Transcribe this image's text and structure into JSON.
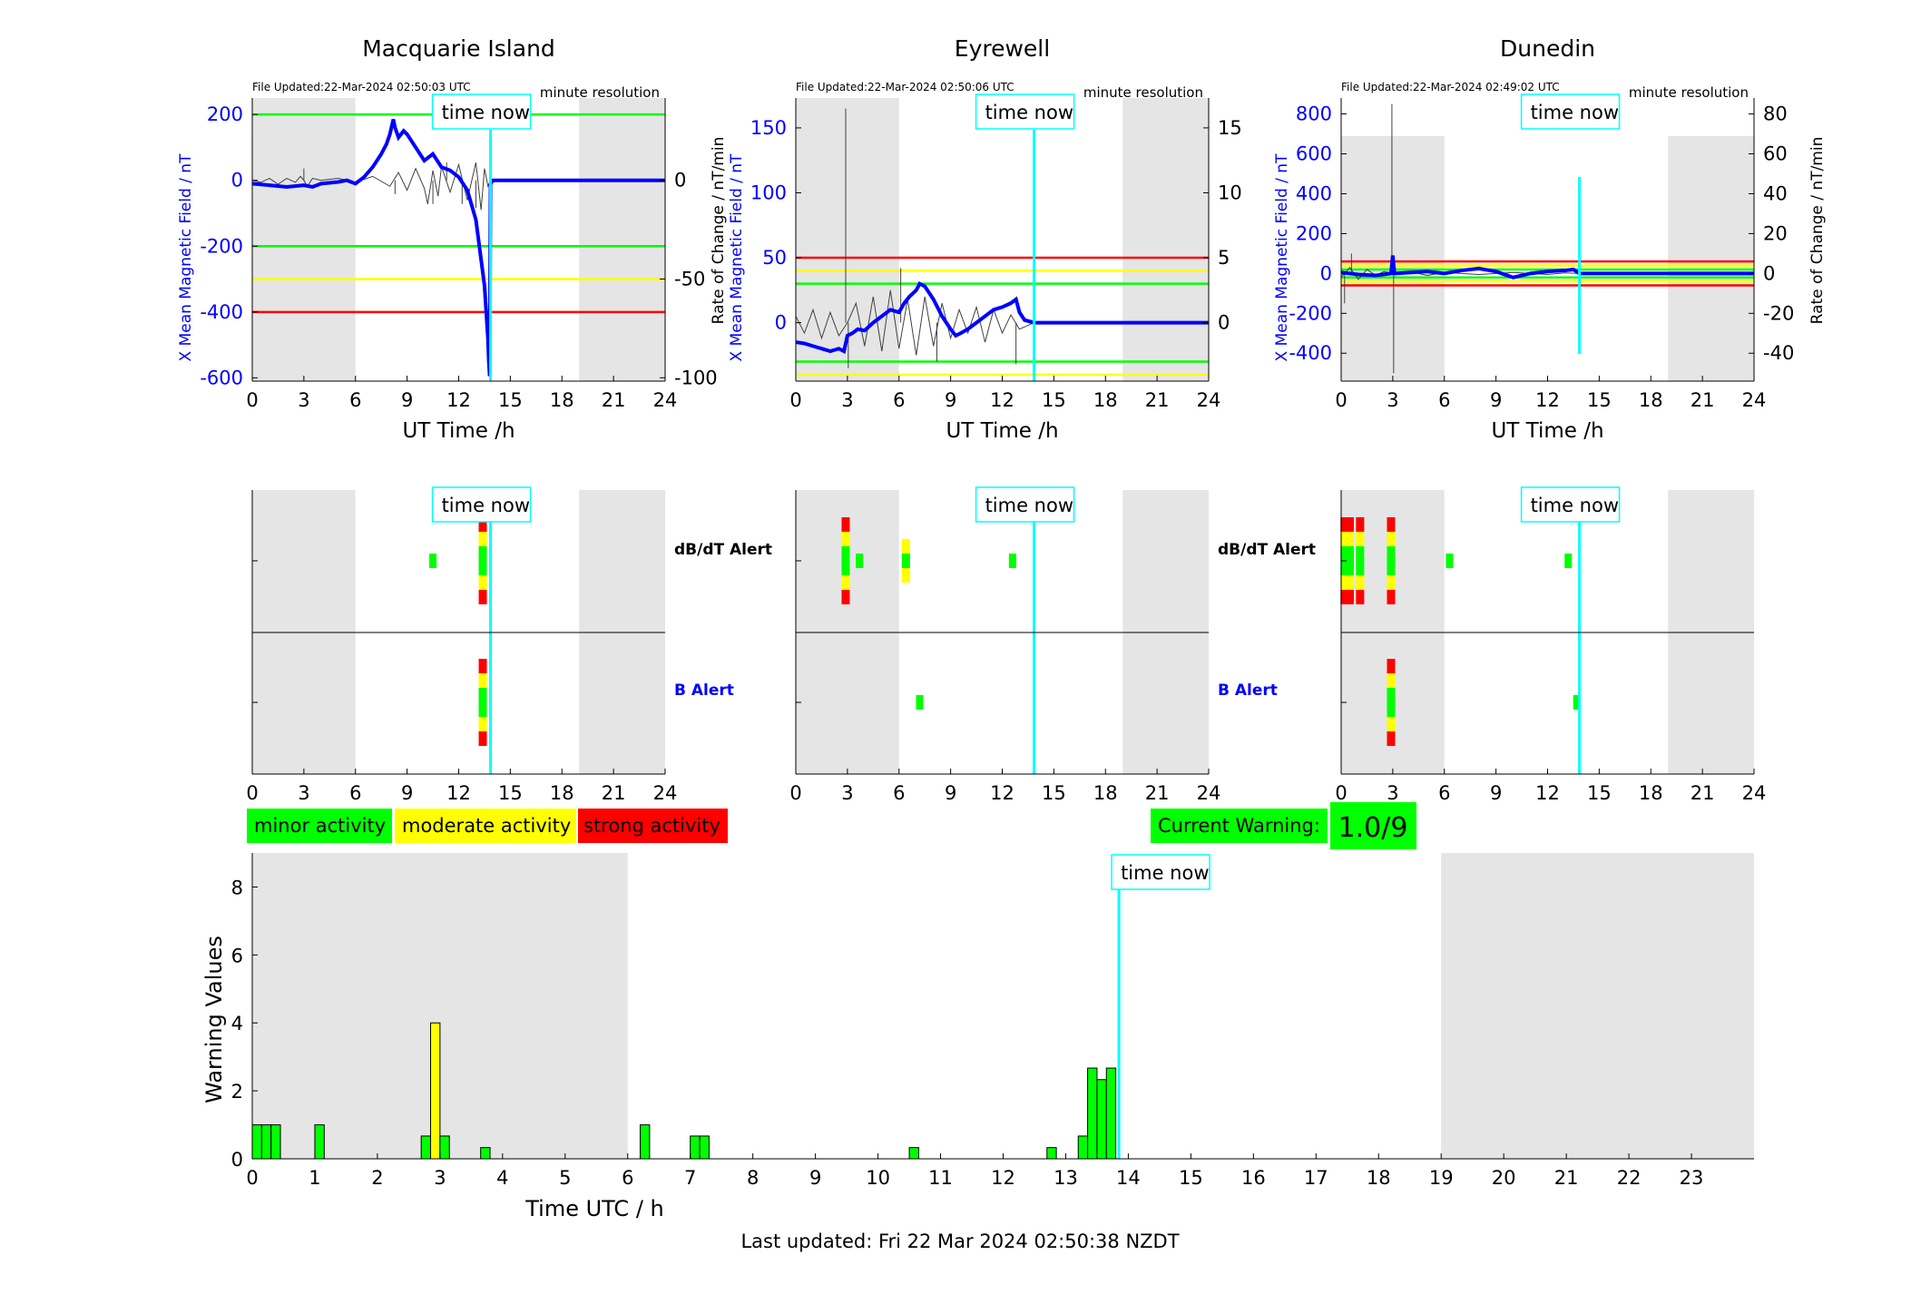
{
  "footer": "Last updated: Fri 22 Mar 2024 02:50:38 NZDT",
  "legend": {
    "minor": "minor activity",
    "moderate": "moderate activity",
    "strong": "strong activity"
  },
  "current_warning": {
    "label": "Current Warning:",
    "value": "1.0/9"
  },
  "time_now_label": "time now",
  "colors": {
    "field": "#0000ff",
    "derivative": "#404040",
    "green": "#00ff00",
    "yellow": "#ffff00",
    "red": "#ff0000",
    "cyan": "#00ffff",
    "night": "#e5e5e5"
  },
  "stations": [
    {
      "name": "Macquarie Island",
      "file_updated": "File Updated:22-Mar-2024 02:50:03 UTC",
      "resolution": "minute resolution",
      "ylabel": "X Mean Magnetic Field / nT",
      "y2label": "",
      "xlabel": "UT Time /h",
      "ylim": [
        -610,
        250
      ],
      "yticks": [
        -600,
        -400,
        -200,
        0,
        200
      ],
      "y2lim": [
        -101.7,
        41.7
      ],
      "y2ticks": [
        -100,
        -50,
        0
      ],
      "xlim": [
        0,
        24
      ],
      "xticks": [
        0,
        3,
        6,
        9,
        12,
        15,
        18,
        21,
        24
      ],
      "night": [
        [
          0,
          6
        ],
        [
          19,
          24
        ]
      ],
      "time_now": 13.85,
      "levels": [
        {
          "value": 200,
          "color": "green"
        },
        {
          "value": -200,
          "color": "green"
        },
        {
          "value": -300,
          "color": "yellow"
        },
        {
          "value": -400,
          "color": "red"
        }
      ],
      "field_series": {
        "x": [
          0,
          1,
          2,
          3,
          3.5,
          4,
          5,
          5.5,
          6,
          6.5,
          7,
          7.5,
          7.8,
          8,
          8.2,
          8.3,
          8.5,
          8.8,
          9,
          9.5,
          10,
          10.5,
          11,
          11.5,
          12,
          12.5,
          13,
          13.2,
          13.4,
          13.5,
          13.6,
          13.7,
          13.75,
          13.8,
          13.85,
          14,
          24
        ],
        "y": [
          -10,
          -15,
          -20,
          -15,
          -20,
          -10,
          -5,
          0,
          -10,
          10,
          40,
          80,
          110,
          140,
          185,
          160,
          130,
          150,
          140,
          100,
          60,
          80,
          40,
          30,
          10,
          -30,
          -120,
          -200,
          -280,
          -320,
          -400,
          -480,
          -550,
          -595,
          -10,
          0,
          0
        ]
      },
      "derivative_series": {
        "x": [
          0,
          0.5,
          1,
          1.5,
          2,
          2.5,
          2.8,
          3,
          3.2,
          3.5,
          4,
          5,
          6,
          7,
          8,
          8.5,
          9,
          9.5,
          10,
          10.2,
          10.5,
          10.8,
          11,
          11.5,
          12,
          12.5,
          13,
          13.3,
          13.5,
          13.7,
          13.85,
          24
        ],
        "y": [
          0,
          -1,
          1,
          -2,
          1,
          -1,
          2,
          0,
          -3,
          1,
          0,
          1,
          -1,
          2,
          -3,
          4,
          -5,
          6,
          -4,
          -12,
          5,
          -8,
          7,
          -6,
          8,
          -10,
          9,
          -15,
          6,
          -3,
          0,
          0
        ]
      },
      "derivative_spikes": [
        [
          3.0,
          6
        ],
        [
          10.5,
          -12
        ],
        [
          8.3,
          -7
        ],
        [
          11.3,
          9
        ],
        [
          12.2,
          -12
        ],
        [
          13.0,
          -14
        ]
      ]
    },
    {
      "name": "Eyrewell",
      "file_updated": "File Updated:22-Mar-2024 02:50:06 UTC",
      "resolution": "minute resolution",
      "ylabel": "X Mean Magnetic Field / nT",
      "y2label": "Rate of Change / nT/min",
      "xlabel": "UT Time /h",
      "ylim": [
        -45,
        173
      ],
      "yticks": [
        0,
        50,
        100,
        150
      ],
      "y2lim": [
        -4.5,
        17.3
      ],
      "y2ticks": [
        0,
        5,
        10,
        15
      ],
      "xlim": [
        0,
        24
      ],
      "xticks": [
        0,
        3,
        6,
        9,
        12,
        15,
        18,
        21,
        24
      ],
      "night": [
        [
          0,
          6
        ],
        [
          19,
          24
        ]
      ],
      "time_now": 13.85,
      "levels": [
        {
          "value": 50,
          "color": "red"
        },
        {
          "value": 40,
          "color": "yellow"
        },
        {
          "value": 30,
          "color": "green"
        },
        {
          "value": -30,
          "color": "green"
        },
        {
          "value": -40,
          "color": "yellow"
        }
      ],
      "field_series": {
        "x": [
          0,
          0.5,
          1,
          1.5,
          2,
          2.5,
          2.8,
          3,
          3.3,
          3.6,
          4,
          4.5,
          5,
          5.5,
          6,
          6.3,
          6.6,
          7,
          7.2,
          7.5,
          8,
          8.5,
          9,
          9.3,
          9.6,
          10,
          10.5,
          11,
          11.5,
          12,
          12.5,
          12.8,
          13,
          13.3,
          13.85,
          24
        ],
        "y": [
          -15,
          -16,
          -18,
          -20,
          -22,
          -20,
          -22,
          -10,
          -8,
          -5,
          -6,
          0,
          5,
          10,
          8,
          15,
          20,
          25,
          30,
          28,
          18,
          5,
          -5,
          -10,
          -8,
          -5,
          0,
          5,
          10,
          12,
          15,
          18,
          8,
          2,
          0,
          0
        ]
      },
      "derivative_series": {
        "x": [
          0,
          0.5,
          1,
          1.5,
          2,
          2.5,
          3,
          3.5,
          4,
          4.5,
          5,
          5.5,
          6,
          6.5,
          7,
          7.5,
          8,
          8.5,
          9,
          9.5,
          10,
          10.5,
          11,
          11.5,
          12,
          12.5,
          13,
          13.85,
          24
        ],
        "y": [
          0.5,
          -0.8,
          1,
          -1.2,
          0.8,
          -1,
          0,
          1.5,
          -1.8,
          2,
          -2.2,
          2.5,
          -2,
          1.8,
          -2.5,
          2,
          -1.8,
          1.5,
          -1.2,
          1,
          -0.8,
          1.2,
          -1.5,
          1,
          -0.8,
          0.6,
          -0.5,
          0,
          0
        ]
      },
      "derivative_spikes": [
        [
          2.9,
          16.5
        ],
        [
          3.05,
          -3.5
        ],
        [
          6.1,
          4.2
        ],
        [
          8.2,
          -3
        ],
        [
          12.8,
          -3.2
        ]
      ]
    },
    {
      "name": "Dunedin",
      "file_updated": "File Updated:22-Mar-2024 02:49:02 UTC",
      "resolution": "minute resolution",
      "ylabel": "X Mean Magnetic Field / nT",
      "y2label": "Rate of Change / nT/min",
      "xlabel": "UT Time /h",
      "ylim": [
        -540,
        880
      ],
      "yticks": [
        -400,
        -200,
        0,
        200,
        400,
        600,
        800
      ],
      "y2lim": [
        -54,
        88
      ],
      "y2ticks": [
        -40,
        -20,
        0,
        20,
        40,
        60,
        80
      ],
      "xlim": [
        0,
        24
      ],
      "xticks": [
        0,
        3,
        6,
        9,
        12,
        15,
        18,
        21,
        24
      ],
      "night": [
        [
          0,
          6
        ],
        [
          19,
          24
        ]
      ],
      "time_now": 13.85,
      "levels": [
        {
          "value": 60,
          "color": "red"
        },
        {
          "value": 40,
          "color": "yellow"
        },
        {
          "value": 20,
          "color": "green"
        },
        {
          "value": -20,
          "color": "green"
        },
        {
          "value": -40,
          "color": "yellow"
        },
        {
          "value": -60,
          "color": "red"
        }
      ],
      "field_series": {
        "x": [
          0,
          1,
          2,
          2.9,
          3,
          3.1,
          4,
          5,
          6,
          7,
          8,
          9,
          10,
          11,
          12,
          13,
          13.5,
          13.85,
          24
        ],
        "y": [
          5,
          -5,
          -10,
          0,
          90,
          0,
          5,
          10,
          0,
          15,
          25,
          10,
          -20,
          0,
          10,
          15,
          20,
          0,
          0
        ]
      },
      "derivative_series": {
        "x": [
          0,
          0.5,
          1,
          1.5,
          2,
          2.5,
          3,
          4,
          5,
          6,
          8,
          10,
          12,
          13,
          13.85,
          24
        ],
        "y": [
          -2,
          3,
          -3,
          2,
          -1,
          1,
          0,
          1,
          -1,
          0.5,
          -0.5,
          0.5,
          -0.5,
          0.3,
          0,
          0
        ]
      },
      "derivative_spikes": [
        [
          2.95,
          85
        ],
        [
          3.05,
          -50
        ],
        [
          0.2,
          -15
        ],
        [
          0.6,
          10
        ]
      ]
    }
  ],
  "alerts": {
    "rows": [
      "dB/dT Alert",
      "B Alert"
    ],
    "row_colors": [
      "#000000",
      "#0000ff"
    ],
    "xlim": [
      0,
      24
    ],
    "xticks": [
      0,
      3,
      6,
      9,
      12,
      15,
      18,
      21,
      24
    ],
    "stations": [
      {
        "dbdt": [
          [
            10.5,
            1
          ],
          [
            13.4,
            3
          ]
        ],
        "b": [
          [
            13.4,
            3
          ]
        ]
      },
      {
        "dbdt": [
          [
            2.9,
            3
          ],
          [
            3.7,
            1
          ],
          [
            6.4,
            2
          ],
          [
            12.6,
            1
          ]
        ],
        "b": [
          [
            7.2,
            1
          ]
        ]
      },
      {
        "dbdt": [
          [
            0.2,
            3
          ],
          [
            0.5,
            3
          ],
          [
            1.1,
            3
          ],
          [
            2.9,
            3
          ],
          [
            6.3,
            1
          ],
          [
            13.2,
            1
          ]
        ],
        "b": [
          [
            2.9,
            3
          ],
          [
            13.7,
            1
          ]
        ]
      }
    ]
  },
  "warning_chart": {
    "type": "bar",
    "xlabel": "Time UTC / h",
    "ylabel": "Warning Values",
    "xlim": [
      0,
      24
    ],
    "ylim": [
      0,
      9
    ],
    "yticks": [
      0,
      2,
      4,
      6,
      8
    ],
    "xticks": [
      0,
      1,
      2,
      3,
      4,
      5,
      6,
      7,
      8,
      9,
      10,
      11,
      12,
      13,
      14,
      15,
      16,
      17,
      18,
      19,
      20,
      21,
      22,
      23
    ],
    "night": [
      [
        0,
        6
      ],
      [
        19,
        24
      ]
    ],
    "time_now": 13.85,
    "bar_width": 0.15,
    "bars": [
      {
        "x": 0.075,
        "value": 1,
        "level": "minor"
      },
      {
        "x": 0.225,
        "value": 1,
        "level": "minor"
      },
      {
        "x": 0.375,
        "value": 1,
        "level": "minor"
      },
      {
        "x": 1.075,
        "value": 1,
        "level": "minor"
      },
      {
        "x": 2.775,
        "value": 0.67,
        "level": "minor"
      },
      {
        "x": 2.925,
        "value": 4,
        "level": "moderate"
      },
      {
        "x": 3.075,
        "value": 0.67,
        "level": "minor"
      },
      {
        "x": 3.725,
        "value": 0.33,
        "level": "minor"
      },
      {
        "x": 6.275,
        "value": 1,
        "level": "minor"
      },
      {
        "x": 7.075,
        "value": 0.67,
        "level": "minor"
      },
      {
        "x": 7.225,
        "value": 0.67,
        "level": "minor"
      },
      {
        "x": 10.575,
        "value": 0.33,
        "level": "minor"
      },
      {
        "x": 12.775,
        "value": 0.33,
        "level": "minor"
      },
      {
        "x": 13.275,
        "value": 0.67,
        "level": "minor"
      },
      {
        "x": 13.425,
        "value": 2.67,
        "level": "minor"
      },
      {
        "x": 13.575,
        "value": 2.33,
        "level": "minor"
      },
      {
        "x": 13.725,
        "value": 2.67,
        "level": "minor"
      }
    ]
  }
}
